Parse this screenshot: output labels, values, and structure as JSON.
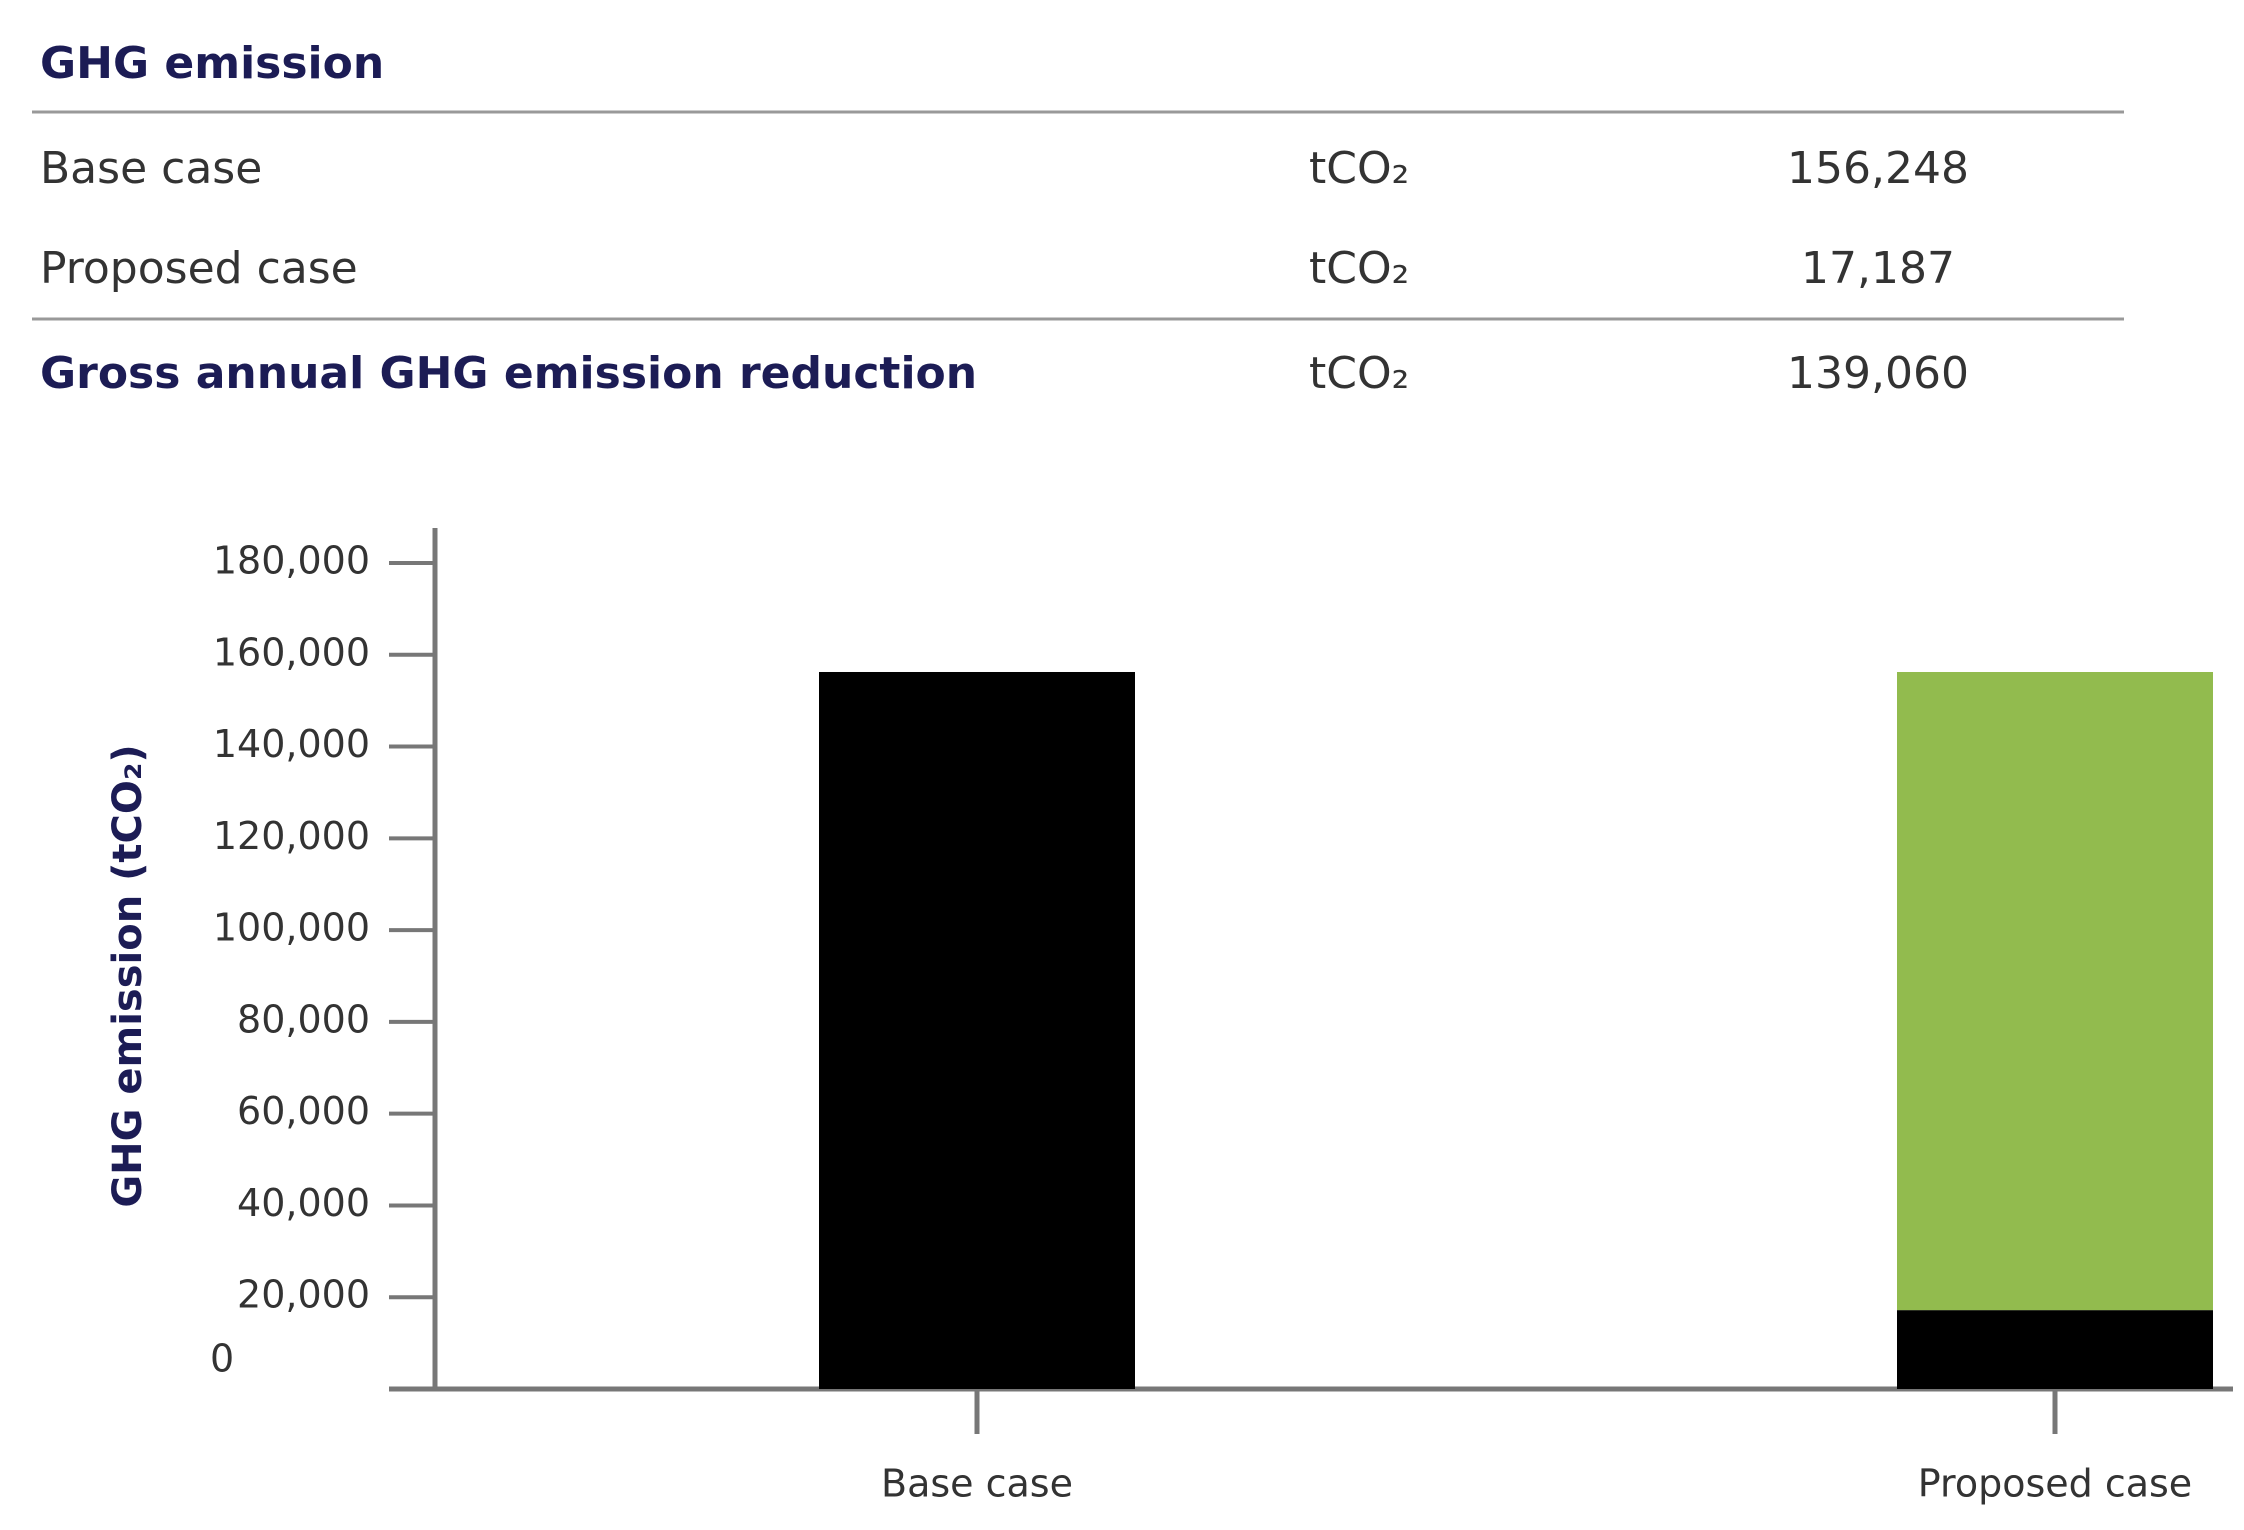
{
  "table": {
    "title": "GHG emission",
    "rows": [
      [
        "Base case",
        "tCO₂",
        "156,248"
      ],
      [
        "Proposed case",
        "tCO₂",
        "17,187"
      ],
      [
        "Gross annual GHG emission reduction",
        "tCO₂",
        "139,060"
      ]
    ]
  },
  "chart_data": {
    "type": "stacked_bar",
    "ylabel": "GHG emission (tCO₂)",
    "categories": [
      "Base case",
      "Proposed case"
    ],
    "series": [
      {
        "color": "#000000",
        "values": [
          156248,
          17187
        ]
      },
      {
        "color": "#92bb4e",
        "values": [
          null,
          139060
        ]
      }
    ],
    "ylim": [
      0,
      180000
    ],
    "yticks": [
      0,
      {
        "value": 20000,
        "label": "20,000"
      },
      {
        "value": 40000,
        "label": "40,000"
      },
      {
        "value": 60000,
        "label": "60,000"
      },
      {
        "value": 80000,
        "label": "80,000"
      },
      {
        "value": 100000,
        "label": "100,000"
      },
      {
        "value": 120000,
        "label": "120,000"
      },
      {
        "value": 140000,
        "label": "140,000"
      },
      {
        "value": 160000,
        "label": "160,000"
      },
      {
        "value": 180000,
        "label": "180,000"
      }
    ],
    "grid": false
  }
}
